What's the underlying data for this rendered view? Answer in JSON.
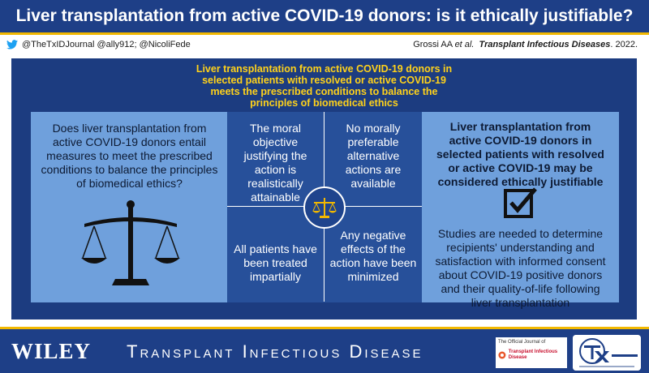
{
  "header": {
    "title": "Liver transplantation from active COVID-19 donors: is it ethically justifiable?",
    "social": "@TheTxIDJournal  @ally912; @NicoliFede",
    "citation_authors": "Grossi AA ",
    "citation_etal": "et al.",
    "citation_journal": "Transplant Infectious Diseases",
    "citation_year": ". 2022."
  },
  "panel": {
    "headline": "Liver transplantation from active COVID-19 donors in selected patients with resolved or active COVID-19 meets the prescribed conditions to balance the principles of biomedical ethics",
    "question": "Does liver transplantation from active COVID-19 donors entail measures to meet the prescribed conditions to balance the principles of biomedical ethics?",
    "conditions": [
      "The moral objective justifying the action is realistically attainable",
      "No morally preferable alternative actions are available",
      "All patients have been treated impartially",
      "Any negative effects of the action have been minimized"
    ],
    "conclusion": "Liver transplantation from active COVID-19 donors in selected patients with resolved or active COVID-19 may be considered ethically justifiable",
    "studies": "Studies are needed to determine recipients' understanding and satisfaction with informed consent about COVID-19 positive donors and their quality-of-life following liver transplantation"
  },
  "footer": {
    "publisher": "WILEY",
    "journal_name": "Transplant Infectious Disease",
    "official_label": "The Official Journal of",
    "official_journal": "Transplant Infectious Disease"
  },
  "icons": {
    "social": "bird-icon",
    "question": "scales-of-justice-icon",
    "center": "scales-of-justice-icon",
    "conclusion": "checkbox-icon"
  },
  "colors": {
    "title_bar": "#1e3f87",
    "accent": "#f2b800",
    "panel": "#1c3c80",
    "side_box": "#6fa0dc",
    "headline_text": "#ffd21a"
  }
}
